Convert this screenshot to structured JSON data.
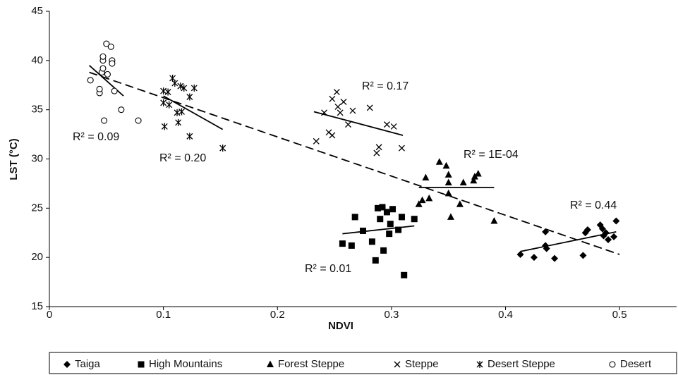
{
  "chart_data": {
    "type": "scatter",
    "x_label": "NDVI",
    "y_label": "LST (°C)",
    "xlim": [
      0,
      0.55
    ],
    "ylim": [
      15,
      45
    ],
    "xticks": [
      0,
      0.1,
      0.2,
      0.3,
      0.4,
      0.5
    ],
    "yticks": [
      15,
      20,
      25,
      30,
      35,
      40,
      45
    ],
    "color": "#000000",
    "series": [
      {
        "name": "Taiga",
        "marker": "diamond",
        "x": [
          0.413,
          0.425,
          0.435,
          0.435,
          0.436,
          0.443,
          0.468,
          0.47,
          0.472,
          0.483,
          0.485,
          0.486,
          0.488,
          0.49,
          0.495,
          0.497
        ],
        "values": [
          20.3,
          20,
          22.6,
          21.2,
          20.9,
          19.9,
          20.2,
          22.5,
          22.8,
          23.3,
          22.9,
          22.2,
          22.5,
          21.8,
          22.1,
          23.7
        ]
      },
      {
        "name": "High Mountains",
        "marker": "square",
        "x": [
          0.257,
          0.265,
          0.268,
          0.275,
          0.283,
          0.286,
          0.288,
          0.29,
          0.292,
          0.293,
          0.296,
          0.298,
          0.299,
          0.301,
          0.306,
          0.309,
          0.311,
          0.32
        ],
        "values": [
          21.4,
          21.2,
          24.1,
          22.7,
          21.6,
          19.7,
          25,
          23.9,
          25.1,
          20.7,
          24.6,
          22.4,
          23.4,
          24.9,
          22.8,
          24.1,
          18.2,
          23.9
        ]
      },
      {
        "name": "Forest Steppe",
        "marker": "triangle",
        "x": [
          0.324,
          0.327,
          0.33,
          0.333,
          0.342,
          0.348,
          0.35,
          0.35,
          0.35,
          0.352,
          0.36,
          0.363,
          0.372,
          0.373,
          0.376,
          0.39
        ],
        "values": [
          25.4,
          25.8,
          28.1,
          26,
          29.7,
          29.3,
          28.4,
          27.6,
          26.5,
          24.1,
          25.4,
          27.6,
          27.8,
          28.2,
          28.5,
          23.7
        ]
      },
      {
        "name": "Steppe",
        "marker": "cross",
        "x": [
          0.234,
          0.241,
          0.245,
          0.248,
          0.248,
          0.252,
          0.253,
          0.255,
          0.258,
          0.262,
          0.266,
          0.281,
          0.287,
          0.289,
          0.296,
          0.302,
          0.309
        ],
        "values": [
          31.8,
          34.7,
          32.7,
          36.1,
          32.4,
          36.8,
          35.3,
          34.7,
          35.8,
          33.5,
          34.9,
          35.2,
          30.6,
          31.2,
          33.5,
          33.3,
          31.1
        ]
      },
      {
        "name": "Desert Steppe",
        "marker": "asterisk",
        "x": [
          0.1,
          0.1,
          0.101,
          0.104,
          0.105,
          0.108,
          0.11,
          0.112,
          0.113,
          0.115,
          0.116,
          0.118,
          0.123,
          0.123,
          0.127,
          0.152
        ],
        "values": [
          36.9,
          35.7,
          33.3,
          36.8,
          35.5,
          38.2,
          37.7,
          34.7,
          33.7,
          37.4,
          34.8,
          37.2,
          36.3,
          32.3,
          37.2,
          31.1
        ]
      },
      {
        "name": "Desert",
        "marker": "circle",
        "x": [
          0.036,
          0.044,
          0.044,
          0.046,
          0.047,
          0.047,
          0.047,
          0.048,
          0.05,
          0.051,
          0.054,
          0.055,
          0.055,
          0.057,
          0.063,
          0.078
        ],
        "values": [
          38,
          36.7,
          37.1,
          38.8,
          39.2,
          40,
          40.4,
          33.9,
          41.7,
          38.6,
          41.4,
          40,
          39.7,
          36.9,
          35,
          33.9
        ]
      }
    ],
    "trend_lines": [
      {
        "x": [
          0.035,
          0.5
        ],
        "y": [
          38.8,
          20.3
        ],
        "dashed": true
      },
      {
        "x": [
          0.035,
          0.065
        ],
        "y": [
          39.5,
          36.4
        ],
        "dashed": false
      },
      {
        "x": [
          0.1,
          0.152
        ],
        "y": [
          36.4,
          33
        ],
        "dashed": false
      },
      {
        "x": [
          0.232,
          0.31
        ],
        "y": [
          34.8,
          32.4
        ],
        "dashed": false
      },
      {
        "x": [
          0.257,
          0.32
        ],
        "y": [
          22.4,
          23.2
        ],
        "dashed": false
      },
      {
        "x": [
          0.324,
          0.39
        ],
        "y": [
          27.1,
          27.1
        ],
        "dashed": false
      },
      {
        "x": [
          0.413,
          0.497
        ],
        "y": [
          20.6,
          22.6
        ],
        "dashed": false
      }
    ],
    "annotations": [
      "R² = 0.09",
      "R² = 0.20",
      "R² = 0.17",
      "R² = 1E-04",
      "R² = 0.44",
      "R² = 0.01"
    ]
  }
}
